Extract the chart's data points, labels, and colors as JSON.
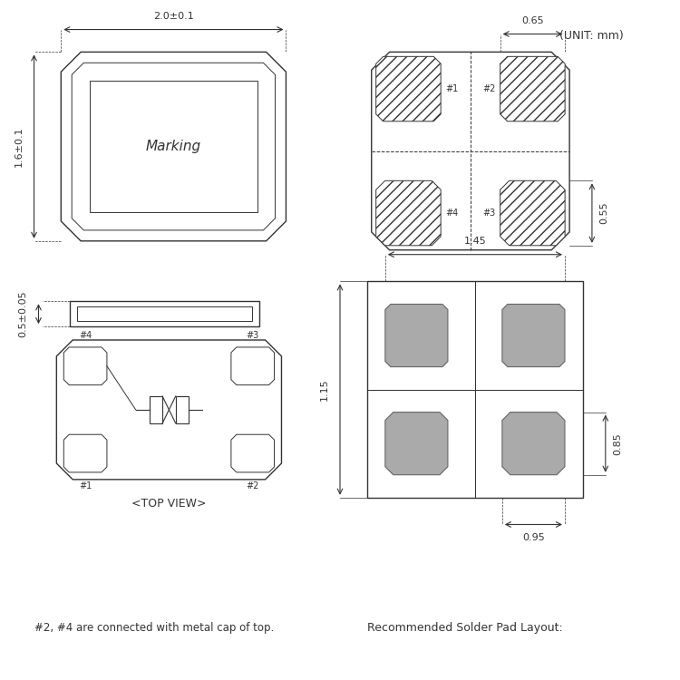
{
  "bg_color": "#ffffff",
  "line_color": "#333333",
  "hatch_color": "#555555",
  "gray_fill": "#aaaaaa",
  "title_unit": "(UNIT: mm)",
  "dim_20": "2.0±0.1",
  "dim_16": "1.6±0.1",
  "dim_05": "0.5±0.05",
  "dim_065": "0.65",
  "dim_055": "0.55",
  "dim_145": "1.45",
  "dim_115": "1.15",
  "dim_085": "0.85",
  "dim_095": "0.95",
  "label_marking": "Marking",
  "label_topview": "<TOP VIEW>",
  "label_note": "#2, #4 are connected with metal cap of top.",
  "label_solder": "Recommended Solder Pad Layout:"
}
